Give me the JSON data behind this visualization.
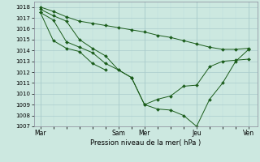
{
  "bg_color": "#cce8e0",
  "grid_major_color": "#aacccc",
  "grid_minor_color": "#bbdddd",
  "line_color": "#1a5c1a",
  "ylim": [
    1007,
    1018.5
  ],
  "yticks": [
    1007,
    1008,
    1009,
    1010,
    1011,
    1012,
    1013,
    1014,
    1015,
    1016,
    1017,
    1018
  ],
  "xtick_labels": [
    "Mar",
    "Sam",
    "Mer",
    "Jeu",
    "Ven"
  ],
  "xtick_positions": [
    0,
    36,
    48,
    72,
    96
  ],
  "xlim": [
    -3,
    100
  ],
  "xlabel": "Pression niveau de la mer( hPa )",
  "series": [
    {
      "x": [
        0,
        6,
        12,
        18,
        24,
        30,
        36,
        42,
        48,
        54,
        60,
        66,
        72,
        78,
        84,
        90,
        96
      ],
      "y": [
        1018.0,
        1017.6,
        1017.1,
        1016.7,
        1016.5,
        1016.3,
        1016.1,
        1015.9,
        1015.7,
        1015.4,
        1015.2,
        1014.9,
        1014.6,
        1014.3,
        1014.1,
        1014.1,
        1014.2
      ]
    },
    {
      "x": [
        0,
        6,
        12,
        18,
        24,
        30,
        36,
        42,
        48,
        54,
        60,
        66,
        72,
        78,
        84,
        90,
        96
      ],
      "y": [
        1017.8,
        1017.2,
        1016.7,
        1015.0,
        1014.2,
        1013.5,
        1012.2,
        1011.5,
        1009.0,
        1009.5,
        1009.8,
        1010.7,
        1010.8,
        1012.5,
        1013.0,
        1013.1,
        1013.2
      ]
    },
    {
      "x": [
        0,
        6,
        12,
        18,
        24,
        30,
        36,
        42,
        48,
        54,
        60,
        66,
        72,
        78,
        84,
        90,
        96
      ],
      "y": [
        1017.5,
        1016.8,
        1014.8,
        1014.3,
        1013.8,
        1012.8,
        1012.2,
        1011.5,
        1009.0,
        1008.6,
        1008.5,
        1008.0,
        1007.0,
        1009.5,
        1011.0,
        1013.0,
        1014.1
      ]
    },
    {
      "x": [
        0,
        6,
        12,
        18,
        24,
        30
      ],
      "y": [
        1017.5,
        1014.9,
        1014.2,
        1013.9,
        1012.8,
        1012.2
      ]
    }
  ]
}
